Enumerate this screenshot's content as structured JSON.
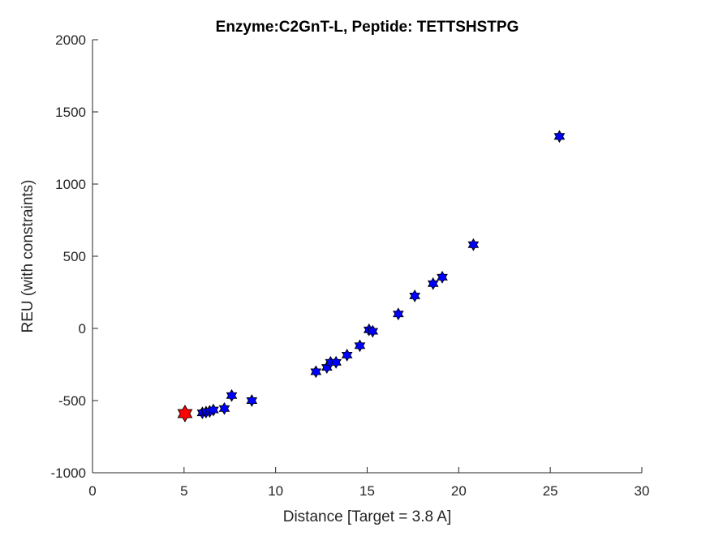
{
  "chart_data": {
    "type": "scatter",
    "title": "Enzyme:C2GnT-L, Peptide: TETTSHSTPG",
    "xlabel": "Distance [Target = 3.8 A]",
    "ylabel": "REU (with constraints)",
    "xlim": [
      0,
      30
    ],
    "ylim": [
      -1000,
      2000
    ],
    "xticks": [
      0,
      5,
      10,
      15,
      20,
      25,
      30
    ],
    "yticks": [
      -1000,
      -500,
      0,
      500,
      1000,
      1500,
      2000
    ],
    "xtick_labels": [
      "0",
      "5",
      "10",
      "15",
      "20",
      "25",
      "30"
    ],
    "ytick_labels": [
      "-1000",
      "-500",
      "0",
      "500",
      "1000",
      "1500",
      "2000"
    ],
    "grid": false,
    "marker": "hexagram",
    "series": [
      {
        "color": "#0000ff",
        "points": [
          {
            "x": 6.0,
            "y": -585
          },
          {
            "x": 6.2,
            "y": -580
          },
          {
            "x": 6.4,
            "y": -575
          },
          {
            "x": 6.6,
            "y": -565
          },
          {
            "x": 7.2,
            "y": -555
          },
          {
            "x": 7.6,
            "y": -465
          },
          {
            "x": 8.7,
            "y": -500
          },
          {
            "x": 12.2,
            "y": -300
          },
          {
            "x": 12.8,
            "y": -270
          },
          {
            "x": 13.0,
            "y": -235
          },
          {
            "x": 13.3,
            "y": -235
          },
          {
            "x": 13.9,
            "y": -185
          },
          {
            "x": 14.6,
            "y": -120
          },
          {
            "x": 15.1,
            "y": -10
          },
          {
            "x": 15.3,
            "y": -20
          },
          {
            "x": 16.7,
            "y": 100
          },
          {
            "x": 17.6,
            "y": 225
          },
          {
            "x": 18.6,
            "y": 310
          },
          {
            "x": 19.1,
            "y": 355
          },
          {
            "x": 20.8,
            "y": 580
          },
          {
            "x": 25.5,
            "y": 1330
          }
        ]
      },
      {
        "color": "#ff0000",
        "highlight": true,
        "points": [
          {
            "x": 5.05,
            "y": -590
          }
        ]
      }
    ]
  }
}
